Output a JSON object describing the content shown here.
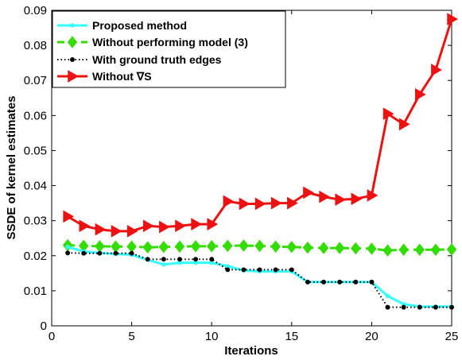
{
  "chart_data": {
    "type": "line",
    "title": "",
    "xlabel": "Iterations",
    "ylabel": "SSDE of kernel estimates",
    "xlim": [
      0,
      25
    ],
    "ylim": [
      0,
      0.09
    ],
    "xticks": [
      0,
      5,
      10,
      15,
      20,
      25
    ],
    "yticks": [
      0,
      0.01,
      0.02,
      0.03,
      0.04,
      0.05,
      0.06,
      0.07,
      0.08,
      0.09
    ],
    "xtick_labels": [
      "0",
      "5",
      "10",
      "15",
      "20",
      "25"
    ],
    "ytick_labels": [
      "0",
      "0.01",
      "0.02",
      "0.03",
      "0.04",
      "0.05",
      "0.06",
      "0.07",
      "0.08",
      "0.09"
    ],
    "grid": false,
    "legend_position": "top-left",
    "x": [
      1,
      2,
      3,
      4,
      5,
      6,
      7,
      8,
      9,
      10,
      11,
      12,
      13,
      14,
      15,
      16,
      17,
      18,
      19,
      20,
      21,
      22,
      23,
      24,
      25
    ],
    "series": [
      {
        "name": "Proposed method",
        "color": "#33ffff",
        "marker": "dot",
        "line": "solid",
        "values": [
          0.0225,
          0.0212,
          0.0208,
          0.0205,
          0.0203,
          0.0188,
          0.0175,
          0.018,
          0.018,
          0.018,
          0.017,
          0.0158,
          0.0155,
          0.0155,
          0.0155,
          0.0125,
          0.0125,
          0.0125,
          0.0125,
          0.0125,
          0.0085,
          0.0062,
          0.0055,
          0.0055,
          0.0055
        ]
      },
      {
        "name": "Without performing model (3)",
        "color": "#33dd00",
        "marker": "diamond",
        "line": "dashed",
        "values": [
          0.023,
          0.0228,
          0.0227,
          0.0226,
          0.0226,
          0.0224,
          0.0225,
          0.0226,
          0.0227,
          0.0227,
          0.0228,
          0.0229,
          0.0228,
          0.0226,
          0.0225,
          0.0223,
          0.0222,
          0.0222,
          0.0221,
          0.022,
          0.0215,
          0.0217,
          0.0217,
          0.0217,
          0.0218
        ]
      },
      {
        "name": "With ground truth edges",
        "color": "#000000",
        "marker": "dot",
        "line": "dotted",
        "values": [
          0.0208,
          0.0207,
          0.0207,
          0.0207,
          0.0207,
          0.019,
          0.019,
          0.019,
          0.019,
          0.019,
          0.016,
          0.016,
          0.016,
          0.016,
          0.016,
          0.0125,
          0.0125,
          0.0125,
          0.0125,
          0.0125,
          0.0053,
          0.0053,
          0.0053,
          0.0053,
          0.0053
        ]
      },
      {
        "name": "Without ∇S",
        "color": "#ee1111",
        "marker": "triangle-right",
        "line": "solid",
        "values": [
          0.0312,
          0.0285,
          0.0275,
          0.027,
          0.027,
          0.0285,
          0.0282,
          0.0285,
          0.029,
          0.029,
          0.0355,
          0.0348,
          0.0348,
          0.035,
          0.035,
          0.038,
          0.0368,
          0.036,
          0.0362,
          0.0372,
          0.0605,
          0.0575,
          0.066,
          0.073,
          0.0875
        ]
      }
    ]
  }
}
